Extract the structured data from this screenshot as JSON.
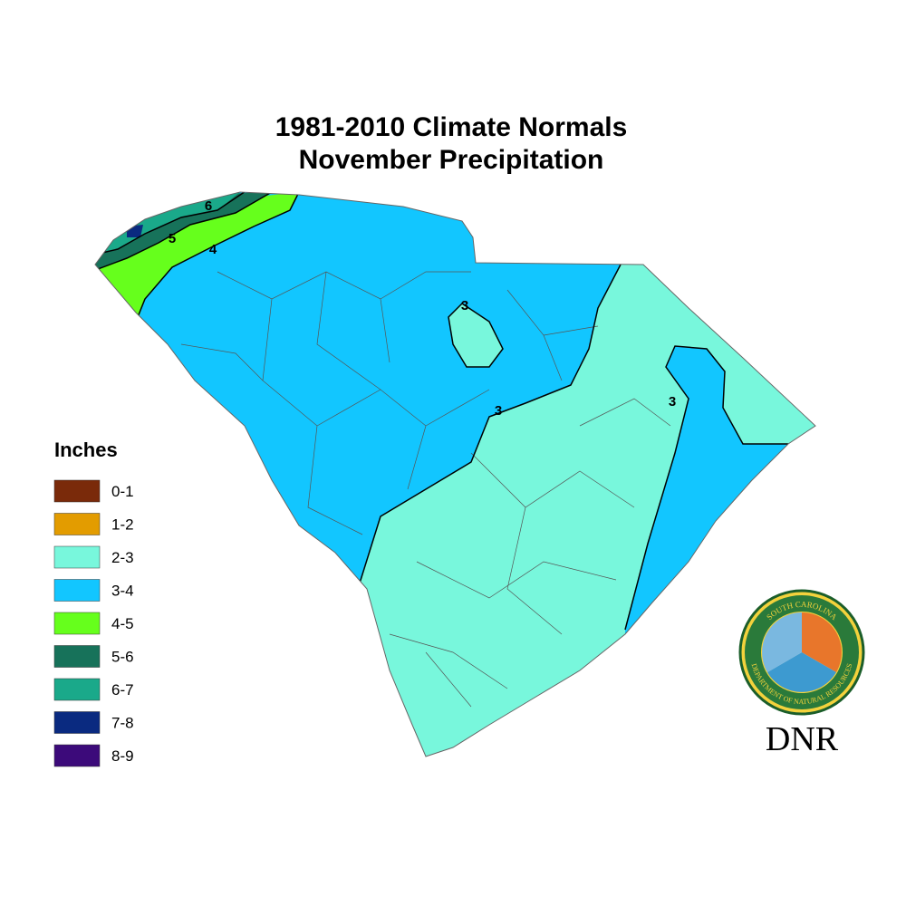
{
  "header": {
    "title_line1": "1981-2010 Climate Normals",
    "title_line2": "November Precipitation"
  },
  "legend": {
    "title": "Inches",
    "items": [
      {
        "label": "0-1",
        "color": "#7a2a0a"
      },
      {
        "label": "1-2",
        "color": "#e39c00"
      },
      {
        "label": "2-3",
        "color": "#78f7dc"
      },
      {
        "label": "3-4",
        "color": "#12c6ff"
      },
      {
        "label": "4-5",
        "color": "#66ff1c"
      },
      {
        "label": "5-6",
        "color": "#17725a"
      },
      {
        "label": "6-7",
        "color": "#1aa98a"
      },
      {
        "label": "7-8",
        "color": "#0a2a80"
      },
      {
        "label": "8-9",
        "color": "#3c0a7a"
      }
    ]
  },
  "contour_labels": [
    "6",
    "5",
    "4",
    "3",
    "3",
    "3"
  ],
  "logo": {
    "ring_top": "SOUTH CAROLINA",
    "ring_bottom": "DEPARTMENT OF NATURAL RESOURCES",
    "acronym": "DNR"
  }
}
